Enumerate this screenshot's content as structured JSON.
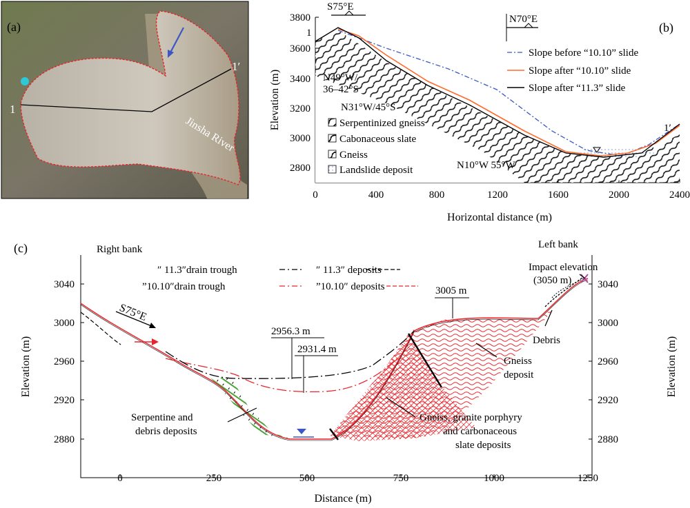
{
  "panel_a": {
    "label": "(a)",
    "section_start": "1",
    "section_end": "1′",
    "river": "Jinsha River"
  },
  "panel_b": {
    "label": "(b)",
    "left_orientation": "S75°E",
    "right_orientation": "N70°E",
    "section_start": "1",
    "section_end": "1′",
    "ylabel": "Elevation (m)",
    "xlabel": "Horizontal distance (m)",
    "yticks": [
      "3800",
      "3600",
      "3400",
      "3200",
      "3000",
      "2800"
    ],
    "xticks": [
      "0",
      "400",
      "800",
      "1200",
      "1600",
      "2000",
      "2400"
    ],
    "annotations": {
      "attitude1_line1": "N49°W/",
      "attitude1_line2": "36–42°S",
      "attitude2": "N31°W/45°S",
      "attitude3": "N10°W 55°W"
    },
    "lithology_legend": [
      "Serpentinized gneiss",
      "Cabonaceous slate",
      "Gneiss",
      "Landslide deposit"
    ],
    "legend": [
      {
        "label": "Slope before “10.10” slide",
        "color": "#3b57c4"
      },
      {
        "label": "Slope after “10.10” slide",
        "color": "#ff6a2b"
      },
      {
        "label": "Slope after “11.3” slide",
        "color": "#000000"
      }
    ]
  },
  "panel_c": {
    "label": "(c)",
    "right_bank": "Right bank",
    "left_bank": "Left bank",
    "direction": "S75°E",
    "ylabel_left": "Elevation (m)",
    "ylabel_right": "Elevation (m)",
    "xlabel": "Distance (m)",
    "yticks": [
      "3040",
      "3000",
      "2960",
      "2920",
      "2880"
    ],
    "xticks": [
      "0",
      "250",
      "500",
      "750",
      "1000",
      "1250"
    ],
    "legend": {
      "drain_113": "″ 11.3″drain trough",
      "deposits_113": "″ 11.3″ deposits",
      "drain_1010": "”10.10″drain trough",
      "deposits_1010": "”10.10″ deposits"
    },
    "levels": {
      "a": "2956.3 m",
      "b": "2931.4 m",
      "c": "3005 m"
    },
    "impact_line1": "Impact elevation",
    "impact_line2": "(3050 m)",
    "debris": "Debris",
    "gneiss_line1": "Gneiss",
    "gneiss_line2": "deposit",
    "serp_line1": "Serpentine and",
    "serp_line2": "debris deposits",
    "mix_line1": "Gneiss, granite porphyry",
    "mix_line2": "and carbonaceous",
    "mix_line3": "slate deposits"
  },
  "colors": {
    "red": "#e8252b",
    "orange": "#ff6a2b",
    "blue": "#3b57c4",
    "green": "#4aa43a",
    "magenta": "#b04aa0"
  }
}
